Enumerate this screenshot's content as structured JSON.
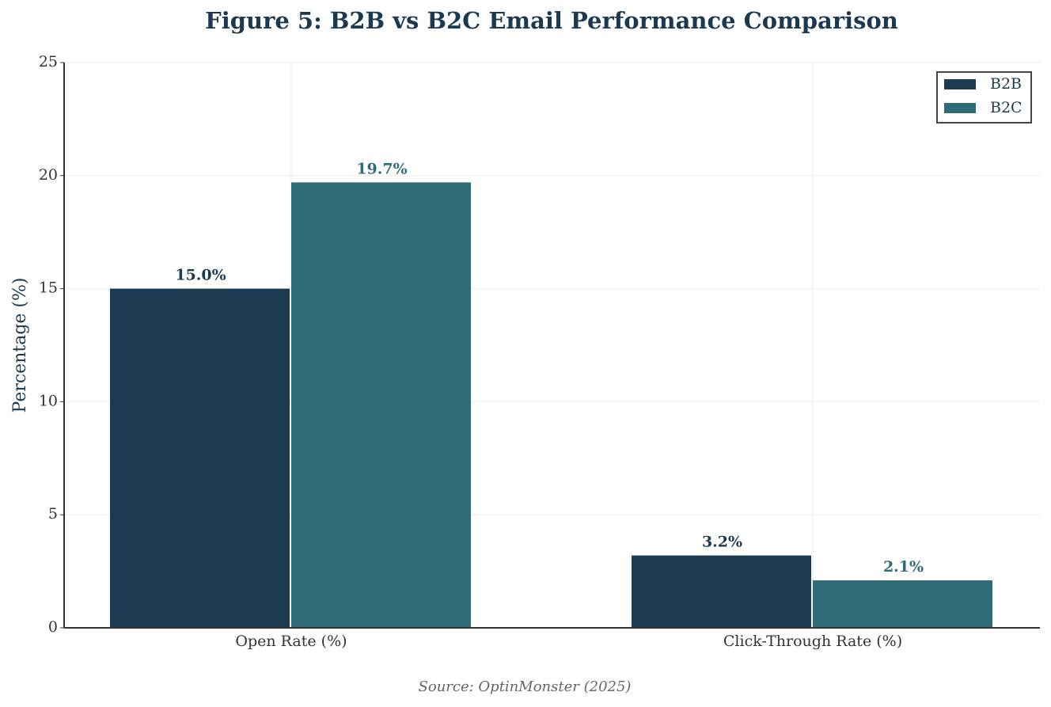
{
  "chart_data": {
    "type": "bar",
    "title": "Figure 5: B2B vs B2C Email Performance Comparison",
    "y_label": "Percentage (%)",
    "source": "Source: OptinMonster (2025)",
    "categories": [
      "Open Rate (%)",
      "Click-Through Rate (%)"
    ],
    "series": [
      {
        "name": "B2B",
        "color": "#1c3a50",
        "values": [
          15.0,
          3.2
        ],
        "value_labels": [
          "15.0%",
          "3.2%"
        ]
      },
      {
        "name": "B2C",
        "color": "#2f6b79",
        "values": [
          19.7,
          2.1
        ],
        "value_labels": [
          "19.7%",
          "2.1%"
        ]
      }
    ],
    "ylim": [
      0,
      25
    ],
    "yticks": [
      0,
      5,
      10,
      15,
      20,
      25
    ],
    "grid": true,
    "legend": "upper-right"
  }
}
